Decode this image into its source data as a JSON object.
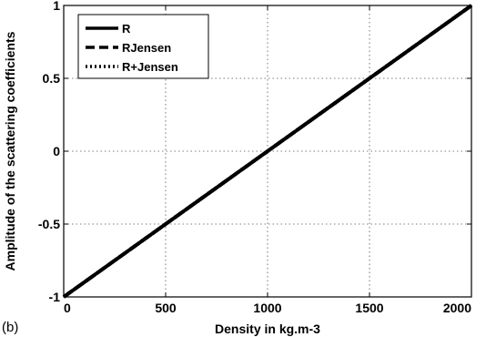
{
  "panel_label": "(b)",
  "chart_data": {
    "type": "line",
    "xlabel": "Density in kg.m-3",
    "ylabel": "Amplitude of the scattering coefficients",
    "xlim": [
      0,
      2000
    ],
    "ylim": [
      -1,
      1
    ],
    "xticks": [
      0,
      500,
      1000,
      1500,
      2000
    ],
    "yticks": [
      -1,
      -0.5,
      0,
      0.5,
      1
    ],
    "grid": true,
    "legend_position": "top-left",
    "series": [
      {
        "name": "R",
        "style": "solid",
        "color": "#000000",
        "x": [
          0,
          500,
          1000,
          1500,
          2000
        ],
        "y": [
          -1,
          -0.5,
          0,
          0.5,
          1
        ]
      },
      {
        "name": "RJensen",
        "style": "dashed",
        "color": "#000000",
        "x": [
          0,
          500,
          1000,
          1500,
          2000
        ],
        "y": [
          -1,
          -0.5,
          0,
          0.5,
          1
        ]
      },
      {
        "name": "R+Jensen",
        "style": "dotted",
        "color": "#000000",
        "x": [
          0,
          500,
          1000,
          1500,
          2000
        ],
        "y": [
          -1,
          -0.5,
          0,
          0.5,
          1
        ]
      }
    ]
  }
}
